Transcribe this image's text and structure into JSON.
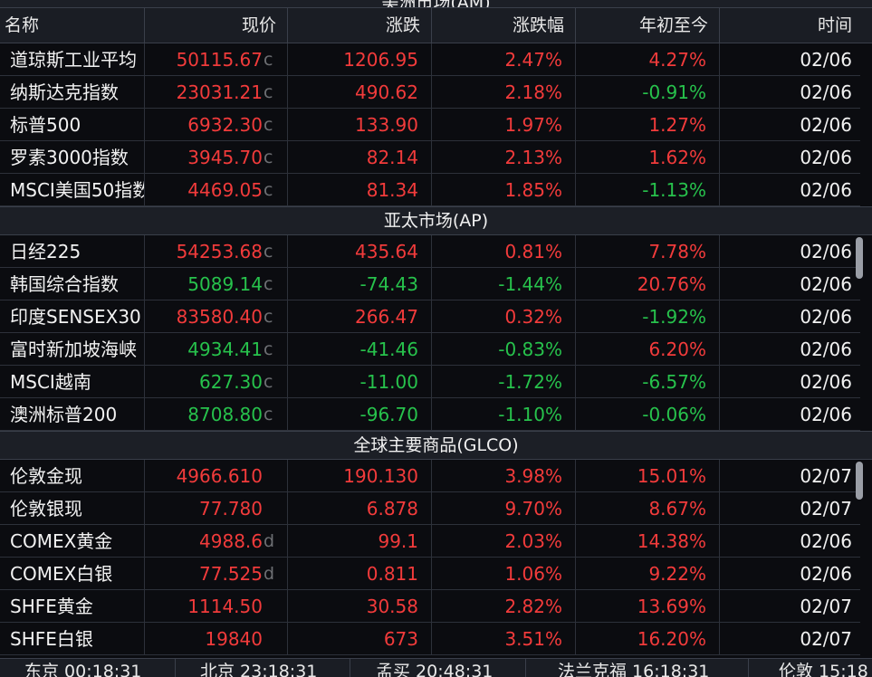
{
  "top_section": {
    "title": "美洲市场(AM)"
  },
  "columns": {
    "name": "名称",
    "price": "现价",
    "change": "涨跌",
    "pct": "涨跌幅",
    "ytd": "年初至今",
    "time": "时间"
  },
  "sections": [
    {
      "title": "",
      "rows": [
        {
          "name": "道琼斯工业平均",
          "price": "50115.67",
          "flag": "c",
          "change": "1206.95",
          "pct": "2.47%",
          "ytd": "4.27%",
          "time": "02/06",
          "dir": "up",
          "ytd_dir": "up"
        },
        {
          "name": "纳斯达克指数",
          "price": "23031.21",
          "flag": "c",
          "change": "490.62",
          "pct": "2.18%",
          "ytd": "-0.91%",
          "time": "02/06",
          "dir": "up",
          "ytd_dir": "down"
        },
        {
          "name": "标普500",
          "price": "6932.30",
          "flag": "c",
          "change": "133.90",
          "pct": "1.97%",
          "ytd": "1.27%",
          "time": "02/06",
          "dir": "up",
          "ytd_dir": "up"
        },
        {
          "name": "罗素3000指数",
          "price": "3945.70",
          "flag": "c",
          "change": "82.14",
          "pct": "2.13%",
          "ytd": "1.62%",
          "time": "02/06",
          "dir": "up",
          "ytd_dir": "up"
        },
        {
          "name": "MSCI美国50指数",
          "price": "4469.05",
          "flag": "c",
          "change": "81.34",
          "pct": "1.85%",
          "ytd": "-1.13%",
          "time": "02/06",
          "dir": "up",
          "ytd_dir": "down"
        }
      ]
    },
    {
      "title": "亚太市场(AP)",
      "rows": [
        {
          "name": "日经225",
          "price": "54253.68",
          "flag": "c",
          "change": "435.64",
          "pct": "0.81%",
          "ytd": "7.78%",
          "time": "02/06",
          "dir": "up",
          "ytd_dir": "up"
        },
        {
          "name": "韩国综合指数",
          "price": "5089.14",
          "flag": "c",
          "change": "-74.43",
          "pct": "-1.44%",
          "ytd": "20.76%",
          "time": "02/06",
          "dir": "down",
          "ytd_dir": "up"
        },
        {
          "name": "印度SENSEX30",
          "price": "83580.40",
          "flag": "c",
          "change": "266.47",
          "pct": "0.32%",
          "ytd": "-1.92%",
          "time": "02/06",
          "dir": "up",
          "ytd_dir": "down"
        },
        {
          "name": "富时新加坡海峡",
          "price": "4934.41",
          "flag": "c",
          "change": "-41.46",
          "pct": "-0.83%",
          "ytd": "6.20%",
          "time": "02/06",
          "dir": "down",
          "ytd_dir": "up"
        },
        {
          "name": "MSCI越南",
          "price": "627.30",
          "flag": "c",
          "change": "-11.00",
          "pct": "-1.72%",
          "ytd": "-6.57%",
          "time": "02/06",
          "dir": "down",
          "ytd_dir": "down"
        },
        {
          "name": "澳洲标普200",
          "price": "8708.80",
          "flag": "c",
          "change": "-96.70",
          "pct": "-1.10%",
          "ytd": "-0.06%",
          "time": "02/06",
          "dir": "down",
          "ytd_dir": "down"
        }
      ]
    },
    {
      "title": "全球主要商品(GLCO)",
      "rows": [
        {
          "name": "伦敦金现",
          "price": "4966.610",
          "flag": "",
          "change": "190.130",
          "pct": "3.98%",
          "ytd": "15.01%",
          "time": "02/07",
          "dir": "up",
          "ytd_dir": "up"
        },
        {
          "name": "伦敦银现",
          "price": "77.780",
          "flag": "",
          "change": "6.878",
          "pct": "9.70%",
          "ytd": "8.67%",
          "time": "02/07",
          "dir": "up",
          "ytd_dir": "up"
        },
        {
          "name": "COMEX黄金",
          "price": "4988.6",
          "flag": "d",
          "change": "99.1",
          "pct": "2.03%",
          "ytd": "14.38%",
          "time": "02/06",
          "dir": "up",
          "ytd_dir": "up"
        },
        {
          "name": "COMEX白银",
          "price": "77.525",
          "flag": "d",
          "change": "0.811",
          "pct": "1.06%",
          "ytd": "9.22%",
          "time": "02/06",
          "dir": "up",
          "ytd_dir": "up"
        },
        {
          "name": "SHFE黄金",
          "price": "1114.50",
          "flag": "",
          "change": "30.58",
          "pct": "2.82%",
          "ytd": "13.69%",
          "time": "02/07",
          "dir": "up",
          "ytd_dir": "up"
        },
        {
          "name": "SHFE白银",
          "price": "19840",
          "flag": "",
          "change": "673",
          "pct": "3.51%",
          "ytd": "16.20%",
          "time": "02/07",
          "dir": "up",
          "ytd_dir": "up"
        }
      ]
    }
  ],
  "footer": {
    "clocks": [
      {
        "label": "东京 00:18:31"
      },
      {
        "label": "北京 23:18:31"
      },
      {
        "label": "孟买 20:48:31"
      },
      {
        "label": "法兰克福 16:18:31"
      },
      {
        "label": "伦敦 15:18"
      }
    ]
  },
  "colors": {
    "up": "#f23b3b",
    "down": "#27c24c",
    "background": "#0b0c10",
    "header": "#1c1f26"
  }
}
